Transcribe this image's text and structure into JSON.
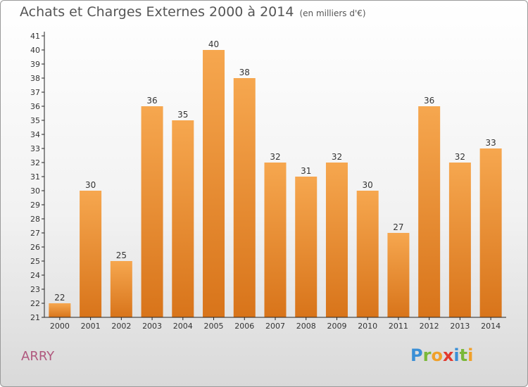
{
  "title": "Achats et Charges Externes 2000 à 2014",
  "subtitle": "(en milliers d'€)",
  "commune": "ARRY",
  "brand": {
    "letters": [
      {
        "ch": "P",
        "color": "#3a8fd6"
      },
      {
        "ch": "r",
        "color": "#7ab83a"
      },
      {
        "ch": "o",
        "color": "#f0a02a"
      },
      {
        "ch": "x",
        "color": "#e2392e"
      },
      {
        "ch": "i",
        "color": "#3a8fd6"
      },
      {
        "ch": "t",
        "color": "#7ab83a"
      },
      {
        "ch": "i",
        "color": "#f0a02a"
      }
    ]
  },
  "colors": {
    "bar_light": "#f6a74f",
    "bar_dark": "#d8741a",
    "axis": "#222222",
    "grid": "#ffffff"
  },
  "chart_data": {
    "type": "bar",
    "categories": [
      "2000",
      "2001",
      "2002",
      "2003",
      "2004",
      "2005",
      "2006",
      "2007",
      "2008",
      "2009",
      "2010",
      "2011",
      "2012",
      "2013",
      "2014"
    ],
    "values": [
      22,
      30,
      25,
      36,
      35,
      40,
      38,
      32,
      31,
      32,
      30,
      27,
      36,
      32,
      33
    ],
    "ylim": [
      21,
      41
    ],
    "yticks": [
      21,
      22,
      23,
      24,
      25,
      26,
      27,
      28,
      29,
      30,
      31,
      32,
      33,
      34,
      35,
      36,
      37,
      38,
      39,
      40,
      41
    ],
    "grid": false,
    "data_labels": true
  }
}
